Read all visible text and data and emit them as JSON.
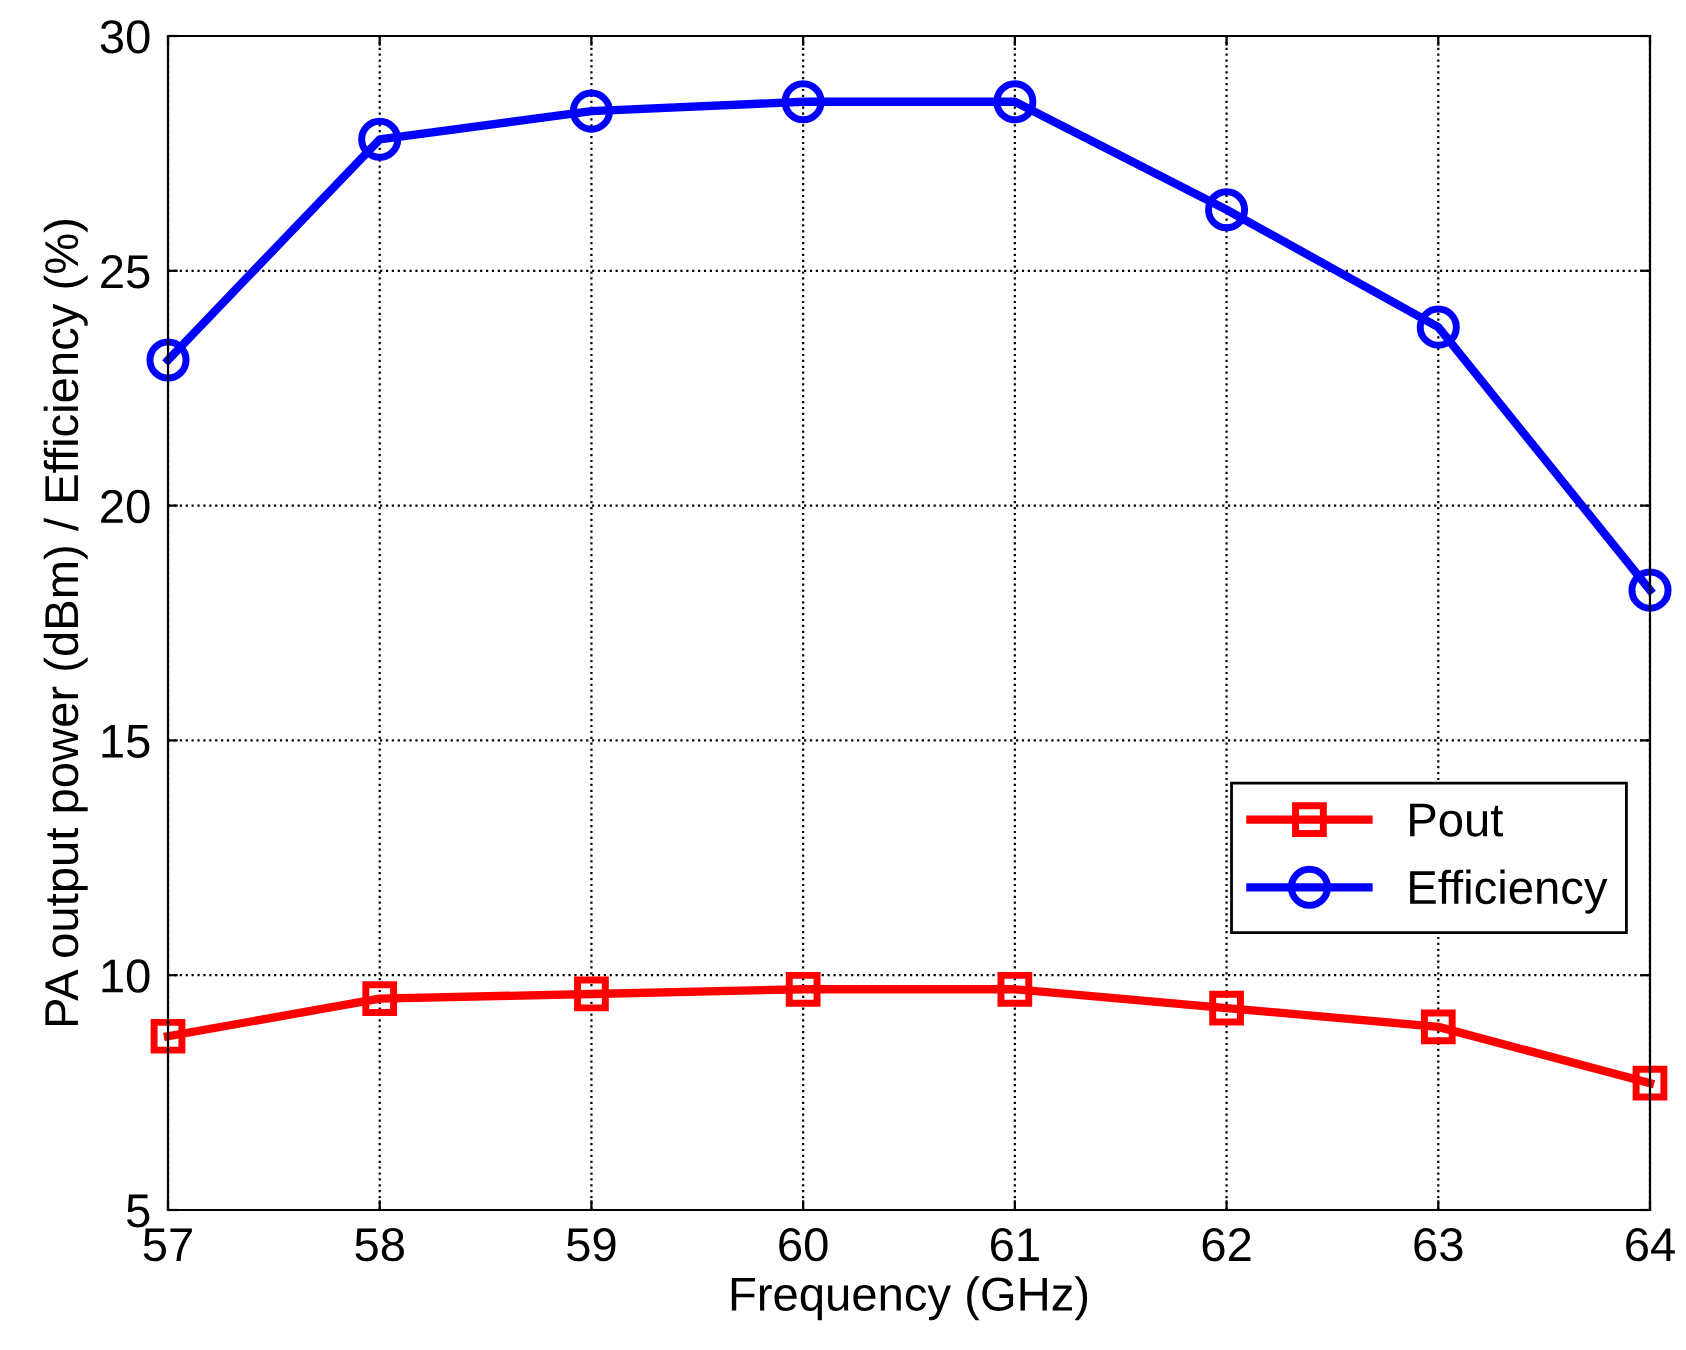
{
  "chart_data": {
    "type": "line",
    "xlabel": "Frequency (GHz)",
    "ylabel": "PA output power (dBm) / Efficiency (%)",
    "x": [
      57,
      58,
      59,
      60,
      61,
      62,
      63,
      64
    ],
    "series": [
      {
        "name": "Pout",
        "color": "#ff0000",
        "marker": "square",
        "values": [
          8.7,
          9.5,
          9.6,
          9.7,
          9.7,
          9.3,
          8.9,
          7.7
        ]
      },
      {
        "name": "Efficiency",
        "color": "#0000ff",
        "marker": "circle",
        "values": [
          23.1,
          27.8,
          28.4,
          28.6,
          28.6,
          26.3,
          23.8,
          18.2
        ]
      }
    ],
    "xlim": [
      57,
      64
    ],
    "xticks": [
      57,
      58,
      59,
      60,
      61,
      62,
      63,
      64
    ],
    "ylim": [
      5,
      30
    ],
    "yticks": [
      5,
      10,
      15,
      20,
      25,
      30
    ],
    "grid": true,
    "legend": "right",
    "line_style": "solid"
  }
}
